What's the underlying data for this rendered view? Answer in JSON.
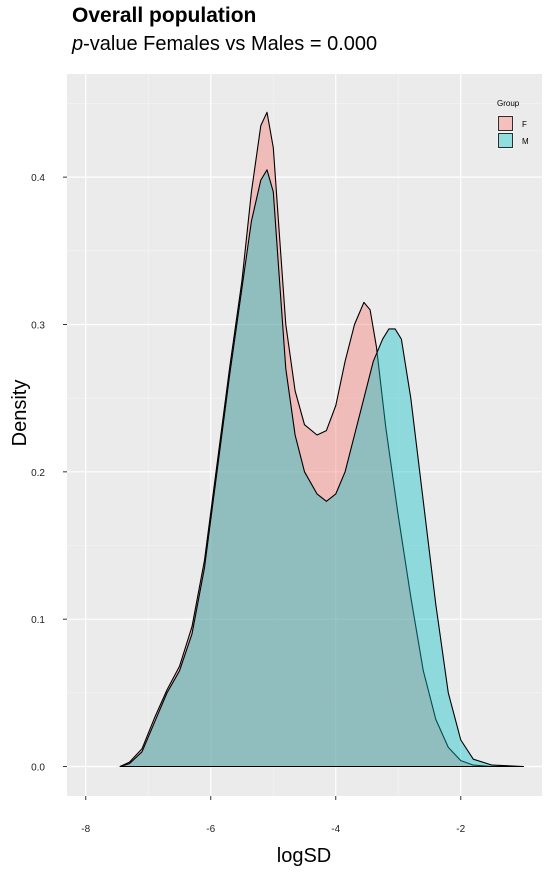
{
  "header": {
    "title": "Overall population",
    "subtitle_italic": "p",
    "subtitle_rest": "-value Females vs Males = 0.000"
  },
  "chart_data": {
    "type": "area",
    "xlabel": "logSD",
    "ylabel": "Density",
    "xlim": [
      -8.3,
      -0.7
    ],
    "ylim": [
      -0.02,
      0.47
    ],
    "xticks": [
      -8,
      -6,
      -4,
      -2
    ],
    "yticks": [
      0.0,
      0.1,
      0.2,
      0.3,
      0.4
    ],
    "xtick_labels": [
      "-8",
      "-6",
      "-4",
      "-2"
    ],
    "ytick_labels": [
      "0.0",
      "0.1",
      "0.2",
      "0.3",
      "0.4"
    ],
    "grid": true,
    "legend": {
      "title": "Group",
      "placement": "top-right"
    },
    "series": [
      {
        "name": "F",
        "color": "#F8766D",
        "fill": "rgba(248,118,109,0.4)",
        "x": [
          -7.45,
          -7.3,
          -7.1,
          -6.9,
          -6.7,
          -6.5,
          -6.3,
          -6.1,
          -5.9,
          -5.7,
          -5.5,
          -5.35,
          -5.2,
          -5.1,
          -5.0,
          -4.9,
          -4.8,
          -4.65,
          -4.5,
          -4.3,
          -4.15,
          -4.0,
          -3.85,
          -3.7,
          -3.55,
          -3.45,
          -3.35,
          -3.2,
          -3.0,
          -2.8,
          -2.6,
          -2.4,
          -2.2,
          -2.0,
          -1.8,
          -1.5,
          -1.0
        ],
        "y": [
          0.0,
          0.003,
          0.012,
          0.033,
          0.052,
          0.068,
          0.095,
          0.14,
          0.205,
          0.27,
          0.33,
          0.39,
          0.435,
          0.444,
          0.42,
          0.36,
          0.3,
          0.255,
          0.232,
          0.225,
          0.228,
          0.245,
          0.275,
          0.3,
          0.315,
          0.31,
          0.285,
          0.23,
          0.17,
          0.115,
          0.065,
          0.032,
          0.013,
          0.004,
          0.001,
          0.0,
          0.0
        ]
      },
      {
        "name": "M",
        "color": "#00BFC4",
        "fill": "rgba(0,191,196,0.4)",
        "x": [
          -7.45,
          -7.3,
          -7.1,
          -6.9,
          -6.7,
          -6.5,
          -6.3,
          -6.1,
          -5.9,
          -5.7,
          -5.5,
          -5.35,
          -5.2,
          -5.1,
          -5.0,
          -4.9,
          -4.8,
          -4.65,
          -4.5,
          -4.3,
          -4.15,
          -4.0,
          -3.85,
          -3.7,
          -3.55,
          -3.4,
          -3.25,
          -3.15,
          -3.05,
          -2.95,
          -2.8,
          -2.6,
          -2.4,
          -2.2,
          -2.0,
          -1.8,
          -1.5,
          -1.0
        ],
        "y": [
          0.0,
          0.002,
          0.01,
          0.03,
          0.05,
          0.065,
          0.09,
          0.135,
          0.2,
          0.265,
          0.325,
          0.37,
          0.398,
          0.405,
          0.39,
          0.33,
          0.27,
          0.225,
          0.2,
          0.185,
          0.18,
          0.185,
          0.2,
          0.225,
          0.25,
          0.275,
          0.29,
          0.297,
          0.297,
          0.29,
          0.25,
          0.18,
          0.11,
          0.05,
          0.018,
          0.005,
          0.001,
          0.0
        ]
      }
    ]
  }
}
